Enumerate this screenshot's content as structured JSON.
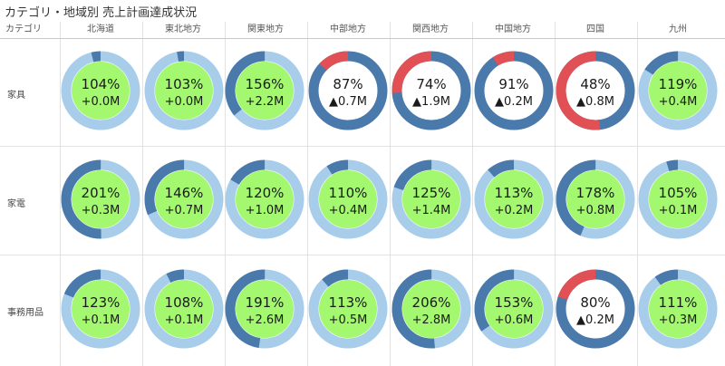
{
  "title": "カテゴリ・地域別 売上計画達成状況",
  "header": {
    "corner": "カテゴリ"
  },
  "colors": {
    "actual": "#4a79ab",
    "remaining": "#a7cdea",
    "shortfall": "#e05054",
    "achieved_fill": "#a3f870",
    "not_achieved_fill": "#ffffff"
  },
  "chart_data": {
    "type": "donut-grid",
    "regions": [
      "北海道",
      "東北地方",
      "関東地方",
      "中部地方",
      "関西地方",
      "中国地方",
      "四国",
      "九州"
    ],
    "categories": [
      "家具",
      "家電",
      "事務用品"
    ],
    "rows": [
      {
        "category": "家具",
        "cells": [
          {
            "pct": 104,
            "delta": "+0.0M"
          },
          {
            "pct": 103,
            "delta": "+0.0M"
          },
          {
            "pct": 156,
            "delta": "+2.2M"
          },
          {
            "pct": 87,
            "delta": "▲0.7M"
          },
          {
            "pct": 74,
            "delta": "▲1.9M"
          },
          {
            "pct": 91,
            "delta": "▲0.2M"
          },
          {
            "pct": 48,
            "delta": "▲0.8M"
          },
          {
            "pct": 119,
            "delta": "+0.4M"
          }
        ]
      },
      {
        "category": "家電",
        "cells": [
          {
            "pct": 201,
            "delta": "+0.3M"
          },
          {
            "pct": 146,
            "delta": "+0.7M"
          },
          {
            "pct": 120,
            "delta": "+1.0M"
          },
          {
            "pct": 110,
            "delta": "+0.4M"
          },
          {
            "pct": 125,
            "delta": "+1.4M"
          },
          {
            "pct": 113,
            "delta": "+0.2M"
          },
          {
            "pct": 178,
            "delta": "+0.8M"
          },
          {
            "pct": 105,
            "delta": "+0.1M"
          }
        ]
      },
      {
        "category": "事務用品",
        "cells": [
          {
            "pct": 123,
            "delta": "+0.1M"
          },
          {
            "pct": 108,
            "delta": "+0.1M"
          },
          {
            "pct": 191,
            "delta": "+2.6M"
          },
          {
            "pct": 113,
            "delta": "+0.5M"
          },
          {
            "pct": 206,
            "delta": "+2.8M"
          },
          {
            "pct": 153,
            "delta": "+0.6M"
          },
          {
            "pct": 80,
            "delta": "▲0.2M"
          },
          {
            "pct": 111,
            "delta": "+0.3M"
          }
        ]
      }
    ]
  }
}
